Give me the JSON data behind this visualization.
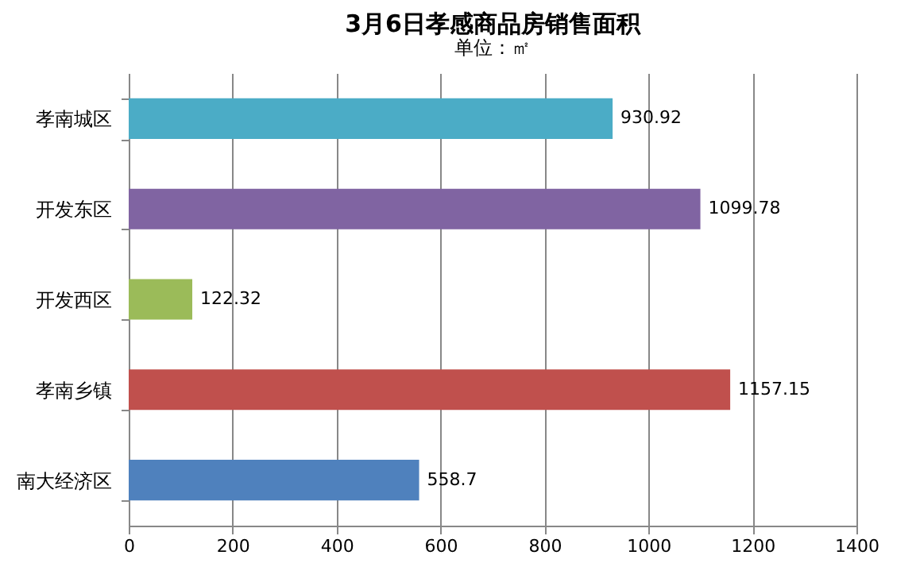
{
  "chart_data": {
    "type": "bar",
    "orientation": "horizontal",
    "title": "3月6日孝感商品房销售面积",
    "subtitle": "单位：㎡",
    "categories": [
      "孝南城区",
      "开发东区",
      "开发西区",
      "孝南乡镇",
      "南大经济区"
    ],
    "values": [
      930.92,
      1099.78,
      122.32,
      1157.15,
      558.7
    ],
    "colors": [
      "#4bacc6",
      "#8064a2",
      "#9bbb59",
      "#c0504d",
      "#4f81bd"
    ],
    "xlim": [
      0,
      1400
    ],
    "xticks": [
      0,
      200,
      400,
      600,
      800,
      1000,
      1200,
      1400
    ],
    "grid": "x",
    "data_labels": true
  }
}
